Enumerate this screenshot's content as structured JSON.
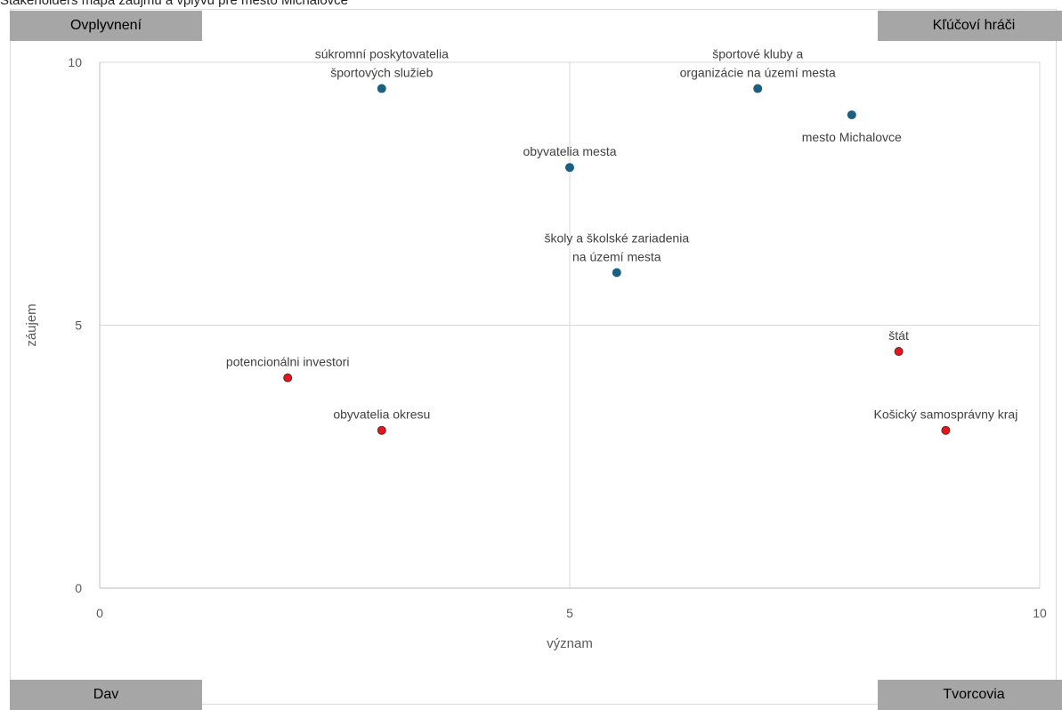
{
  "caption": "Stakeholders mapa záujmu a vplyvu pre mesto Michalovce",
  "quadrants": {
    "top_left": "Ovplyvnení",
    "top_right": "Kľúčoví hráči",
    "bottom_left": "Dav",
    "bottom_right": "Tvorcovia"
  },
  "colors": {
    "blue": "#1b5f82",
    "red": "#e8141a",
    "grid": "#d9d9d9"
  },
  "chart_data": {
    "type": "scatter",
    "xlabel": "význam",
    "ylabel": "záujem",
    "xlim": [
      0,
      10
    ],
    "ylim": [
      0,
      10
    ],
    "xticks": [
      "0",
      "5",
      "10"
    ],
    "yticks": [
      "0",
      "5",
      "10"
    ],
    "grid": "center lines at 5",
    "points": [
      {
        "label": [
          "súkromní poskytovatelia",
          "športových služieb"
        ],
        "x": 3,
        "y": 9.5,
        "color": "blue",
        "label_pos": "above"
      },
      {
        "label": [
          "športové kluby a",
          "organizácie na území mesta"
        ],
        "x": 7,
        "y": 9.5,
        "color": "blue",
        "label_pos": "above"
      },
      {
        "label": [
          "mesto Michalovce"
        ],
        "x": 8,
        "y": 9,
        "color": "blue",
        "label_pos": "below"
      },
      {
        "label": [
          "obyvatelia mesta"
        ],
        "x": 5,
        "y": 8,
        "color": "blue",
        "label_pos": "above"
      },
      {
        "label": [
          "školy a školské zariadenia",
          "na území mesta"
        ],
        "x": 5.5,
        "y": 6,
        "color": "blue",
        "label_pos": "above"
      },
      {
        "label": [
          "štát"
        ],
        "x": 8.5,
        "y": 4.5,
        "color": "red",
        "label_pos": "above"
      },
      {
        "label": [
          "potencionálni investori"
        ],
        "x": 2,
        "y": 4,
        "color": "red",
        "label_pos": "above"
      },
      {
        "label": [
          "obyvatelia okresu"
        ],
        "x": 3,
        "y": 3,
        "color": "red",
        "label_pos": "above"
      },
      {
        "label": [
          "Košický samosprávny kraj"
        ],
        "x": 9,
        "y": 3,
        "color": "red",
        "label_pos": "above"
      }
    ]
  }
}
